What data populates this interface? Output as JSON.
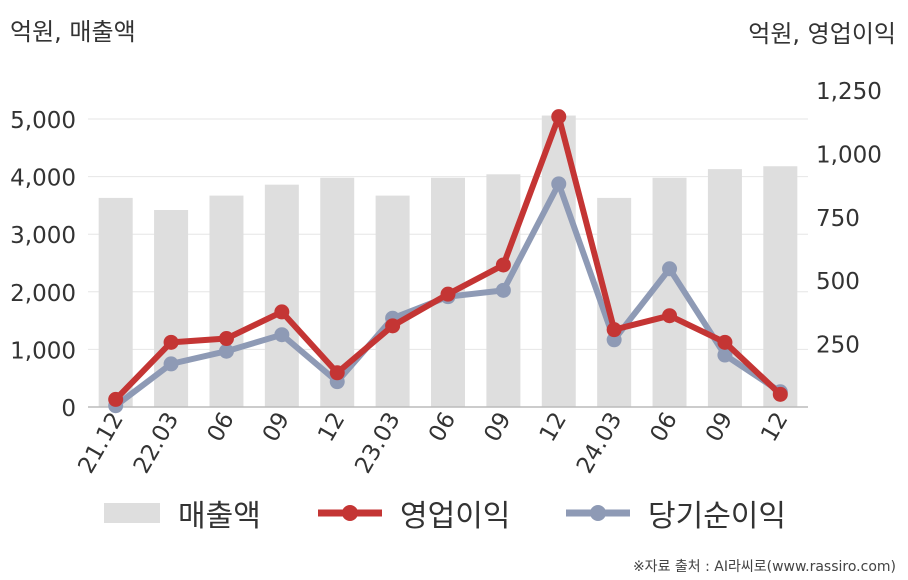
{
  "left_unit": "억원, 매출액",
  "right_unit": "억원, 영업이익",
  "source": "※자료 출처 : AI라씨로(www.rassiro.com)",
  "colors": {
    "revenue": "#dedede",
    "operating_profit": "#c43534",
    "net_income": "#8e9ab5",
    "grid": "#e6e6e6",
    "axis_text": "#333333"
  },
  "legend": {
    "revenue": "매출액",
    "operating_profit": "영업이익",
    "net_income": "당기순이익"
  },
  "chart_data": {
    "type": "bar",
    "categories": [
      "21.12",
      "22.03",
      "06",
      "09",
      "12",
      "23.03",
      "06",
      "09",
      "12",
      "24.03",
      "06",
      "09",
      "12"
    ],
    "series": [
      {
        "name": "매출액",
        "type": "bar",
        "axis": "left",
        "values": [
          3630,
          3420,
          3670,
          3860,
          3980,
          3670,
          3980,
          4040,
          5060,
          3630,
          3980,
          4130,
          4180
        ]
      },
      {
        "name": "영업이익",
        "type": "line",
        "axis": "right",
        "values": [
          30,
          255,
          270,
          375,
          135,
          320,
          445,
          560,
          1145,
          305,
          360,
          255,
          50
        ]
      },
      {
        "name": "당기순이익",
        "type": "line",
        "axis": "right",
        "values": [
          5,
          170,
          220,
          285,
          100,
          350,
          435,
          460,
          880,
          265,
          545,
          205,
          60
        ]
      }
    ],
    "left_axis": {
      "ylim": [
        0,
        5000
      ],
      "ticks": [
        0,
        1000,
        2000,
        3000,
        4000,
        5000
      ],
      "tick_labels": [
        "0",
        "1,000",
        "2,000",
        "3,000",
        "4,000",
        "5,000"
      ]
    },
    "right_axis": {
      "ylim": [
        0,
        1250
      ],
      "ticks": [
        250,
        500,
        750,
        1000,
        1250
      ],
      "tick_labels": [
        "250",
        "500",
        "750",
        "1,000",
        "1,250"
      ]
    },
    "grid": true,
    "legend_position": "bottom"
  }
}
